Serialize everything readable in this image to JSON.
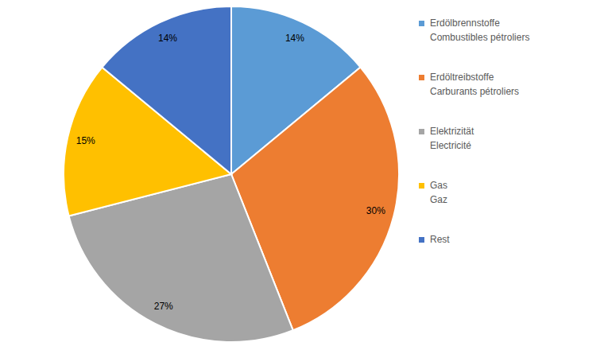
{
  "chart_data": {
    "type": "pie",
    "categories": [
      "Erdölbrennstoffe\nCombustibles pétroliers",
      "Erdöltreibstoffe\nCarburants pétroliers",
      "Elektrizität\nElectricité",
      "Gas\nGaz",
      "Rest"
    ],
    "values": [
      14,
      30,
      27,
      15,
      14
    ],
    "value_labels": [
      "14%",
      "30%",
      "27%",
      "15%",
      "14%"
    ],
    "colors": [
      "#5b9bd5",
      "#ed7d31",
      "#a5a5a5",
      "#ffc000",
      "#4472c4"
    ],
    "data_labels": true,
    "legend": "right"
  }
}
